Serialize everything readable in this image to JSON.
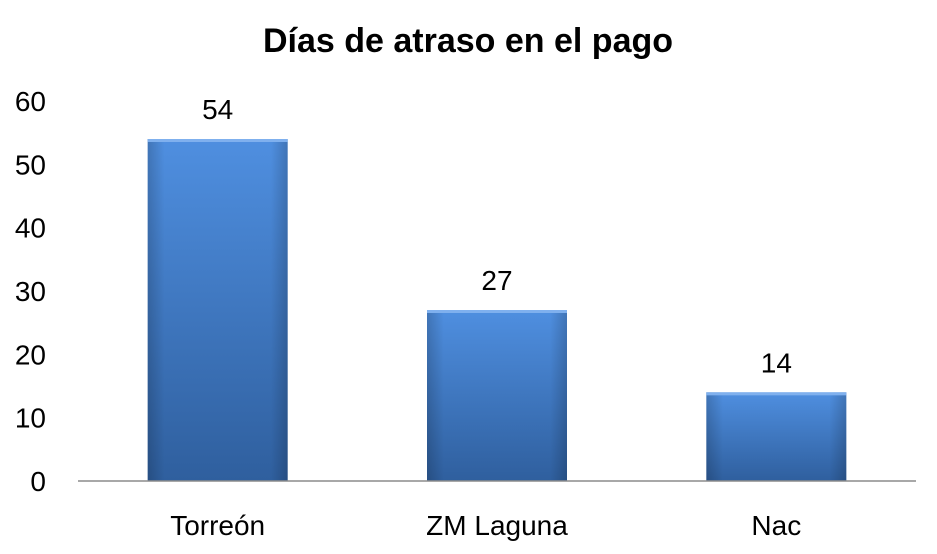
{
  "chart_data": {
    "type": "bar",
    "title": "Días de atraso en el pago",
    "categories": [
      "Torreón",
      "ZM Laguna",
      "Nac"
    ],
    "values": [
      54,
      27,
      14
    ],
    "data_labels": [
      "54",
      "27",
      "14"
    ],
    "ylim": [
      0,
      60
    ],
    "yticks": [
      0,
      10,
      20,
      30,
      40,
      50,
      60
    ],
    "ytick_labels": [
      "0",
      "10",
      "20",
      "30",
      "40",
      "50",
      "60"
    ],
    "grid": false,
    "legend": "none",
    "bar_color": "#4a86d4",
    "bar_color_dark": "#2f5f9e"
  }
}
